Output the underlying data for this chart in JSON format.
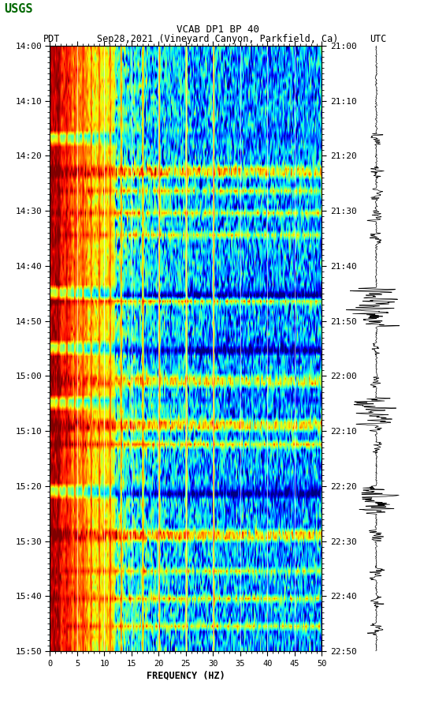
{
  "title_line1": "VCAB DP1 BP 40",
  "title_line2_left": "PDT",
  "title_line2_mid": "Sep28,2021 (Vineyard Canyon, Parkfield, Ca)",
  "title_line2_right": "UTC",
  "xlabel": "FREQUENCY (HZ)",
  "x_ticks": [
    0,
    5,
    10,
    15,
    20,
    25,
    30,
    35,
    40,
    45,
    50
  ],
  "xlim": [
    0,
    50
  ],
  "pdt_yticks": [
    "14:00",
    "14:10",
    "14:20",
    "14:30",
    "14:40",
    "14:50",
    "15:00",
    "15:10",
    "15:20",
    "15:30",
    "15:40",
    "15:50"
  ],
  "utc_yticks": [
    "21:00",
    "21:10",
    "21:20",
    "21:30",
    "21:40",
    "21:50",
    "22:00",
    "22:10",
    "22:20",
    "22:30",
    "22:40",
    "22:50"
  ],
  "n_time": 110,
  "n_freq": 300,
  "fig_width": 5.52,
  "fig_height": 8.92,
  "seed": 12345,
  "event_times": [
    16,
    22,
    26,
    30,
    34,
    44,
    46,
    54,
    60,
    64,
    68,
    72,
    80,
    88,
    95,
    100,
    105
  ],
  "dark_band_times": [
    16,
    44,
    54,
    64,
    80
  ],
  "harmonic_freq_hz": [
    1.5,
    3.0,
    4.5,
    6.0,
    7.5,
    9.0,
    11.0,
    13.0,
    17.0,
    20.0,
    25.0,
    30.0
  ],
  "vert_lines_hz": [
    5,
    10,
    15,
    20,
    25,
    30,
    35,
    40,
    45
  ]
}
